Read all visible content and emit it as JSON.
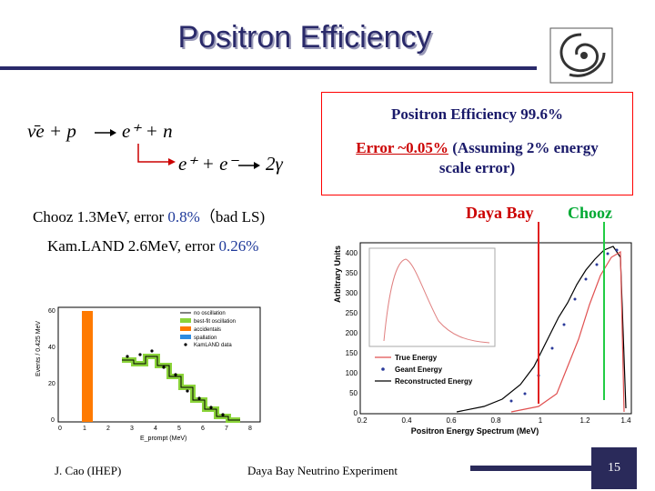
{
  "title": "Positron Efficiency",
  "equation": {
    "line1_lhs": "ν̄e + p",
    "line1_rhs": "e⁺ + n",
    "line2_lhs": "e⁺ + e⁻",
    "line2_rhs": "2γ"
  },
  "infobox": {
    "line1": "Positron Efficiency 99.6%",
    "line2_red": "Error ~0.05%",
    "line2_rest": " (Assuming 2% energy",
    "line3": "scale error)"
  },
  "chooz_note": {
    "prefix": "Chooz 1.3MeV, error ",
    "value": "0.8%",
    "suffix": "（bad LS)"
  },
  "kamland_note": {
    "prefix": "Kam.LAND 2.6MeV, error ",
    "value": "0.26%"
  },
  "daya_bay_label": "Daya Bay",
  "chooz_label": "Chooz",
  "kamland_plot": {
    "ylabel": "Events / 0.425 MeV",
    "xlabel": "E_prompt (MeV)",
    "legend": [
      "no oscillation",
      "best-fit oscillation",
      "accidentals",
      "spallation",
      "KamLAND data"
    ],
    "yticks": [
      "0",
      "20",
      "40",
      "60"
    ],
    "xticks": [
      "0",
      "1",
      "2",
      "3",
      "4",
      "5",
      "6",
      "7",
      "8"
    ]
  },
  "spectrum_plot": {
    "ylabel": "Arbitrary Units",
    "xlabel": "Positron Energy Spectrum (MeV)",
    "yticks": [
      "0",
      "50",
      "100",
      "150",
      "200",
      "250",
      "300",
      "350",
      "400"
    ],
    "xticks": [
      "0.2",
      "0.4",
      "0.6",
      "0.8",
      "1",
      "1.2",
      "1.4"
    ],
    "legend": [
      "True Energy",
      "Geant Energy",
      "Reconstructed Energy"
    ]
  },
  "footer": {
    "author": "J. Cao (IHEP)",
    "experiment": "Daya Bay Neutrino Experiment",
    "page": "15"
  },
  "colors": {
    "title": "#2a2a6a",
    "red": "#cc0000",
    "green": "#00aa33",
    "blue": "#1f3a9a"
  }
}
